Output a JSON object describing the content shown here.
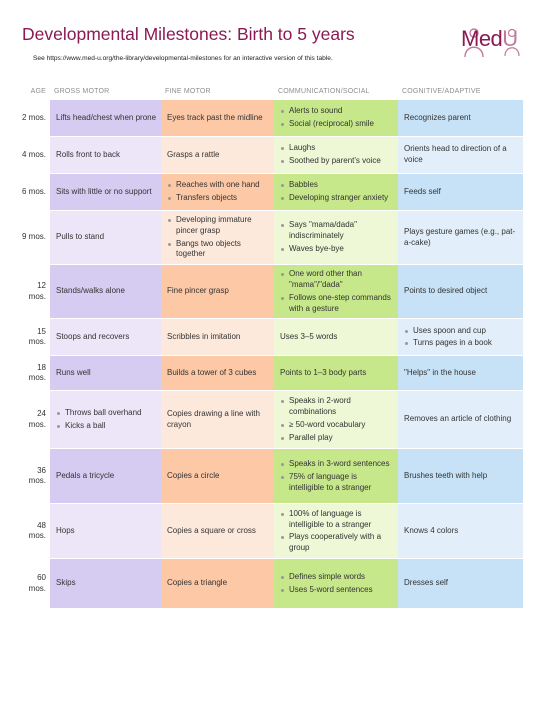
{
  "header": {
    "title": "Developmental Milestones: Birth to 5 years",
    "subtitle": "See https://www.med-u.org/the-library/developmental-milestones for an interactive version of this table.",
    "logo_text_main": "Med",
    "logo_text_accent": "U",
    "brand_color": "#8a1a54"
  },
  "columns": {
    "age": "AGE",
    "gross_motor": "GROSS MOTOR",
    "fine_motor": "FINE MOTOR",
    "communication_social": "COMMUNICATION/SOCIAL",
    "cognitive_adaptive": "COGNITIVE/ADAPTIVE"
  },
  "rows": [
    {
      "age": "2 mos.",
      "gm": [
        "Lifts head/chest when prone"
      ],
      "fm": [
        "Eyes track past the midline"
      ],
      "cs": [
        "Alerts to sound",
        "Social (reciprocal) smile"
      ],
      "ca": [
        "Recognizes parent"
      ],
      "gm_list": false,
      "fm_list": false,
      "cs_list": true,
      "ca_list": false
    },
    {
      "age": "4 mos.",
      "gm": [
        "Rolls front to back"
      ],
      "fm": [
        "Grasps a rattle"
      ],
      "cs": [
        "Laughs",
        "Soothed by parent's voice"
      ],
      "ca": [
        "Orients head to direction of a voice"
      ],
      "gm_list": false,
      "fm_list": false,
      "cs_list": true,
      "ca_list": false
    },
    {
      "age": "6 mos.",
      "gm": [
        "Sits with little or no support"
      ],
      "fm": [
        "Reaches with one hand",
        "Transfers objects"
      ],
      "cs": [
        "Babbles",
        "Developing stranger anxiety"
      ],
      "ca": [
        "Feeds self"
      ],
      "gm_list": false,
      "fm_list": true,
      "cs_list": true,
      "ca_list": false
    },
    {
      "age": "9 mos.",
      "gm": [
        "Pulls to stand"
      ],
      "fm": [
        "Developing immature pincer grasp",
        "Bangs two objects together"
      ],
      "cs": [
        "Says \"mama/dada\" indiscriminately",
        "Waves bye-bye"
      ],
      "ca": [
        "Plays gesture games (e.g., pat-a-cake)"
      ],
      "gm_list": false,
      "fm_list": true,
      "cs_list": true,
      "ca_list": false
    },
    {
      "age": "12 mos.",
      "gm": [
        "Stands/walks alone"
      ],
      "fm": [
        "Fine pincer grasp"
      ],
      "cs": [
        "One word other than \"mama\"/\"dada\"",
        "Follows one-step commands with a gesture"
      ],
      "ca": [
        "Points to desired object"
      ],
      "gm_list": false,
      "fm_list": false,
      "cs_list": true,
      "ca_list": false
    },
    {
      "age": "15 mos.",
      "gm": [
        "Stoops and recovers"
      ],
      "fm": [
        "Scribbles in imitation"
      ],
      "cs": [
        "Uses 3–5 words"
      ],
      "ca": [
        "Uses spoon and cup",
        "Turns pages in a book"
      ],
      "gm_list": false,
      "fm_list": false,
      "cs_list": false,
      "ca_list": true
    },
    {
      "age": "18 mos.",
      "gm": [
        "Runs well"
      ],
      "fm": [
        "Builds a tower of 3 cubes"
      ],
      "cs": [
        "Points to 1–3 body parts"
      ],
      "ca": [
        "\"Helps\" in the house"
      ],
      "gm_list": false,
      "fm_list": false,
      "cs_list": false,
      "ca_list": false
    },
    {
      "age": "24 mos.",
      "gm": [
        "Throws ball overhand",
        "Kicks a ball"
      ],
      "fm": [
        "Copies drawing a line with crayon"
      ],
      "cs": [
        "Speaks in 2-word combinations",
        "≥ 50-word vocabulary",
        "Parallel play"
      ],
      "ca": [
        "Removes an article of clothing"
      ],
      "gm_list": true,
      "fm_list": false,
      "cs_list": true,
      "ca_list": false
    },
    {
      "age": "36 mos.",
      "gm": [
        "Pedals a tricycle"
      ],
      "fm": [
        "Copies a circle"
      ],
      "cs": [
        "Speaks in 3-word sentences",
        "75% of language is intelligible to a stranger"
      ],
      "ca": [
        "Brushes teeth with help"
      ],
      "gm_list": false,
      "fm_list": false,
      "cs_list": true,
      "ca_list": false
    },
    {
      "age": "48 mos.",
      "gm": [
        "Hops"
      ],
      "fm": [
        "Copies a square or cross"
      ],
      "cs": [
        "100% of language is intelligible to a stranger",
        "Plays cooperatively with a group"
      ],
      "ca": [
        "Knows 4 colors"
      ],
      "gm_list": false,
      "fm_list": false,
      "cs_list": true,
      "ca_list": false
    },
    {
      "age": "60 mos.",
      "gm": [
        "Skips"
      ],
      "fm": [
        "Copies a triangle"
      ],
      "cs": [
        "Defines simple words",
        "Uses 5-word sentences"
      ],
      "ca": [
        "Dresses self"
      ],
      "gm_list": false,
      "fm_list": false,
      "cs_list": true,
      "ca_list": false
    }
  ]
}
